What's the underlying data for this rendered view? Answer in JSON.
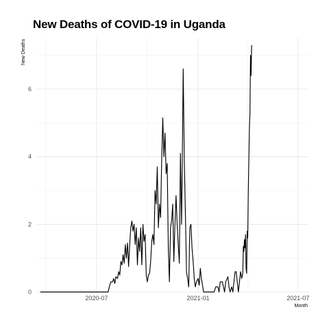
{
  "chart_data": {
    "type": "line",
    "title": "New Deaths of COVID-19 in Uganda",
    "xlabel": "Month",
    "ylabel": "New Deaths",
    "x_ticks": [
      {
        "date": "2020-07-01",
        "label": "2020-07"
      },
      {
        "date": "2021-01-01",
        "label": "2021-01"
      },
      {
        "date": "2021-07-01",
        "label": "2021-07"
      }
    ],
    "y_ticks": [
      0,
      2,
      4,
      6
    ],
    "xlim": [
      "2020-03-15",
      "2021-07-20"
    ],
    "ylim": [
      0,
      7.5
    ],
    "grid": true,
    "series": [
      {
        "color": "#000000",
        "points": [
          [
            "2020-03-21",
            0
          ],
          [
            "2020-05-01",
            0
          ],
          [
            "2020-06-01",
            0
          ],
          [
            "2020-07-10",
            0
          ],
          [
            "2020-07-22",
            0
          ],
          [
            "2020-07-24",
            0.15
          ],
          [
            "2020-07-27",
            0.3
          ],
          [
            "2020-07-30",
            0.3
          ],
          [
            "2020-08-01",
            0.4
          ],
          [
            "2020-08-03",
            0.25
          ],
          [
            "2020-08-05",
            0.45
          ],
          [
            "2020-08-08",
            0.4
          ],
          [
            "2020-08-10",
            0.6
          ],
          [
            "2020-08-12",
            0.5
          ],
          [
            "2020-08-14",
            0.9
          ],
          [
            "2020-08-16",
            0.8
          ],
          [
            "2020-08-18",
            1.1
          ],
          [
            "2020-08-20",
            0.85
          ],
          [
            "2020-08-22",
            1.4
          ],
          [
            "2020-08-24",
            1.0
          ],
          [
            "2020-08-26",
            1.45
          ],
          [
            "2020-08-28",
            0.75
          ],
          [
            "2020-08-30",
            1.4
          ],
          [
            "2020-09-01",
            1.9
          ],
          [
            "2020-09-03",
            2.1
          ],
          [
            "2020-09-05",
            1.8
          ],
          [
            "2020-09-07",
            2.0
          ],
          [
            "2020-09-09",
            1.4
          ],
          [
            "2020-09-11",
            1.9
          ],
          [
            "2020-09-13",
            0.8
          ],
          [
            "2020-09-15",
            1.6
          ],
          [
            "2020-09-17",
            1.2
          ],
          [
            "2020-09-19",
            1.9
          ],
          [
            "2020-09-21",
            0.8
          ],
          [
            "2020-09-23",
            2.0
          ],
          [
            "2020-09-25",
            1.5
          ],
          [
            "2020-09-27",
            1.7
          ],
          [
            "2020-09-29",
            0.5
          ],
          [
            "2020-10-01",
            0.3
          ],
          [
            "2020-10-03",
            0.5
          ],
          [
            "2020-10-05",
            0.55
          ],
          [
            "2020-10-07",
            0.9
          ],
          [
            "2020-10-09",
            1.5
          ],
          [
            "2020-10-11",
            1.7
          ],
          [
            "2020-10-13",
            1.4
          ],
          [
            "2020-10-15",
            3.0
          ],
          [
            "2020-10-17",
            2.6
          ],
          [
            "2020-10-19",
            3.7
          ],
          [
            "2020-10-21",
            1.9
          ],
          [
            "2020-10-23",
            2.6
          ],
          [
            "2020-10-25",
            2.2
          ],
          [
            "2020-10-27",
            3.9
          ],
          [
            "2020-10-29",
            5.15
          ],
          [
            "2020-10-31",
            4.0
          ],
          [
            "2020-11-02",
            4.7
          ],
          [
            "2020-11-04",
            3.5
          ],
          [
            "2020-11-06",
            3.8
          ],
          [
            "2020-11-08",
            1.3
          ],
          [
            "2020-11-10",
            0.3
          ],
          [
            "2020-11-12",
            1.9
          ],
          [
            "2020-11-14",
            2.1
          ],
          [
            "2020-11-16",
            2.6
          ],
          [
            "2020-11-18",
            0.9
          ],
          [
            "2020-11-20",
            2.0
          ],
          [
            "2020-11-22",
            2.85
          ],
          [
            "2020-11-24",
            2.0
          ],
          [
            "2020-11-26",
            1.4
          ],
          [
            "2020-11-28",
            0.85
          ],
          [
            "2020-11-30",
            4.1
          ],
          [
            "2020-12-02",
            2.0
          ],
          [
            "2020-12-03",
            3.3
          ],
          [
            "2020-12-05",
            6.6
          ],
          [
            "2020-12-07",
            3.9
          ],
          [
            "2020-12-09",
            2.3
          ],
          [
            "2020-12-11",
            0.6
          ],
          [
            "2020-12-13",
            0.4
          ],
          [
            "2020-12-15",
            0.15
          ],
          [
            "2020-12-17",
            1.9
          ],
          [
            "2020-12-19",
            2.0
          ],
          [
            "2020-12-21",
            1.3
          ],
          [
            "2020-12-23",
            0.9
          ],
          [
            "2020-12-25",
            0.4
          ],
          [
            "2020-12-27",
            0.15
          ],
          [
            "2020-12-29",
            0.3
          ],
          [
            "2021-01-01",
            0.4
          ],
          [
            "2021-01-03",
            0.2
          ],
          [
            "2021-01-05",
            0.7
          ],
          [
            "2021-01-07",
            0.4
          ],
          [
            "2021-01-09",
            0.2
          ],
          [
            "2021-01-11",
            0
          ],
          [
            "2021-01-20",
            0
          ],
          [
            "2021-01-30",
            0
          ],
          [
            "2021-02-02",
            0.15
          ],
          [
            "2021-02-06",
            0.15
          ],
          [
            "2021-02-08",
            0
          ],
          [
            "2021-02-10",
            0.3
          ],
          [
            "2021-02-14",
            0.3
          ],
          [
            "2021-02-16",
            0.15
          ],
          [
            "2021-02-18",
            0
          ],
          [
            "2021-02-20",
            0.3
          ],
          [
            "2021-02-24",
            0.45
          ],
          [
            "2021-02-26",
            0.15
          ],
          [
            "2021-02-28",
            0
          ],
          [
            "2021-03-03",
            0.15
          ],
          [
            "2021-03-05",
            0
          ],
          [
            "2021-03-07",
            0.3
          ],
          [
            "2021-03-09",
            0.6
          ],
          [
            "2021-03-11",
            0.6
          ],
          [
            "2021-03-13",
            0.3
          ],
          [
            "2021-03-15",
            0
          ],
          [
            "2021-03-17",
            0.3
          ],
          [
            "2021-03-19",
            0.6
          ],
          [
            "2021-03-21",
            0.4
          ],
          [
            "2021-03-23",
            0.55
          ],
          [
            "2021-03-24",
            1.35
          ],
          [
            "2021-03-25",
            1.2
          ],
          [
            "2021-03-26",
            1.55
          ],
          [
            "2021-03-27",
            1.3
          ],
          [
            "2021-03-28",
            1.7
          ],
          [
            "2021-03-29",
            0.7
          ],
          [
            "2021-03-30",
            0.55
          ],
          [
            "2021-03-31",
            1.8
          ],
          [
            "2021-04-01",
            1.6
          ],
          [
            "2021-04-02",
            3.0
          ],
          [
            "2021-04-03",
            3.9
          ],
          [
            "2021-04-04",
            4.85
          ],
          [
            "2021-04-05",
            5.3
          ],
          [
            "2021-04-06",
            7.0
          ],
          [
            "2021-04-07",
            6.4
          ],
          [
            "2021-04-08",
            7.3
          ]
        ]
      }
    ]
  }
}
